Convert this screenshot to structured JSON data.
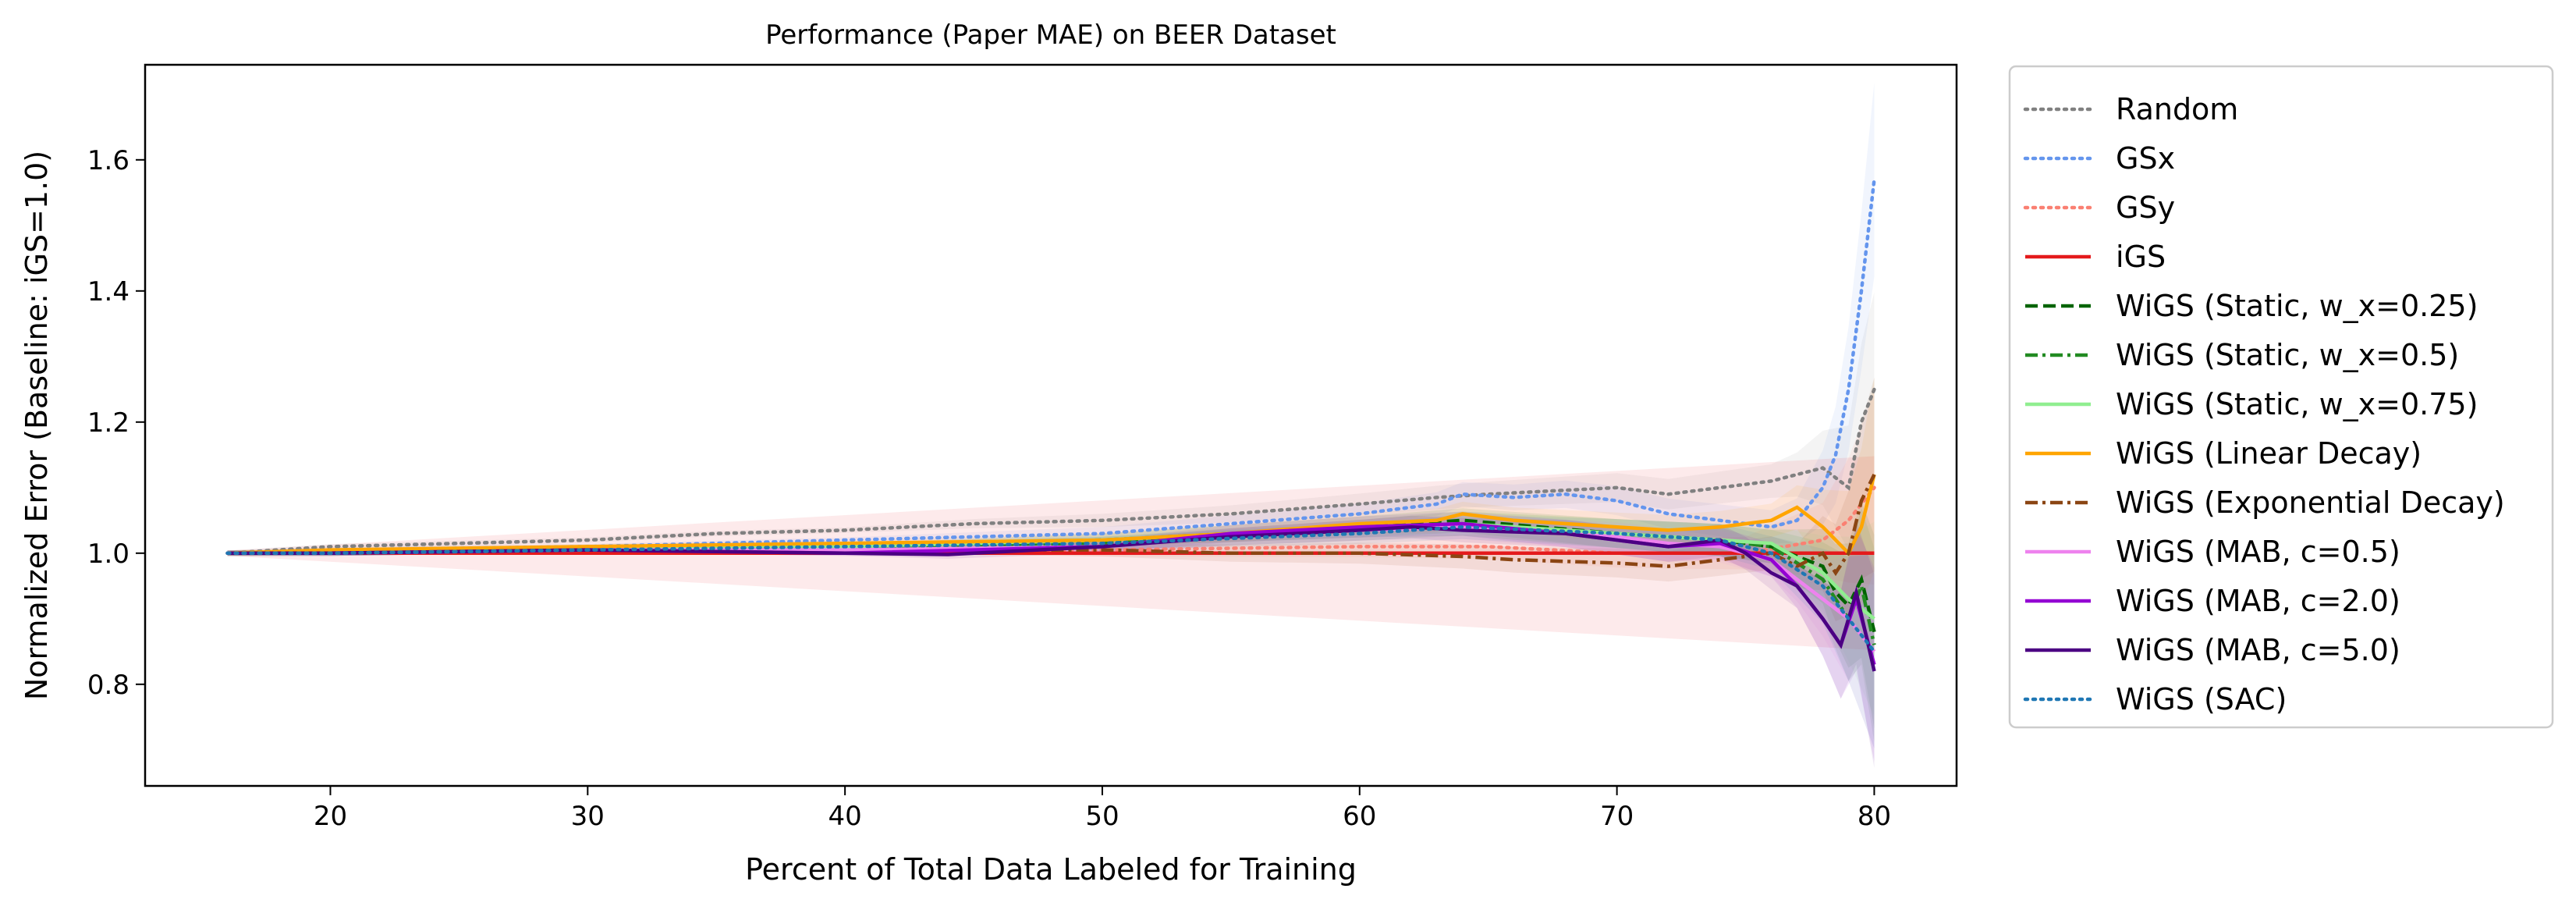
{
  "chart_data": {
    "type": "line",
    "title": "Performance (Paper MAE) on BEER Dataset",
    "xlabel": "Percent of Total Data Labeled for Training",
    "ylabel": "Normalized Error (Baseline: iGS=1.0)",
    "xlim": [
      12.8,
      83.2
    ],
    "ylim": [
      0.645,
      1.745
    ],
    "xticks": [
      20,
      30,
      40,
      50,
      60,
      70,
      80
    ],
    "yticks": [
      0.8,
      1.0,
      1.2,
      1.4,
      1.6
    ],
    "xtick_labels": [
      "20",
      "30",
      "40",
      "50",
      "60",
      "70",
      "80"
    ],
    "ytick_labels": [
      "0.8",
      "1.0",
      "1.2",
      "1.4",
      "1.6"
    ],
    "grid": false,
    "legend_position": "outside right",
    "series": [
      {
        "name": "Random",
        "color": "#808080",
        "dash": "dotted",
        "x": [
          16,
          20,
          25,
          30,
          35,
          40,
          45,
          50,
          55,
          60,
          63,
          65,
          70,
          72,
          74,
          76,
          77,
          78,
          79,
          79.5,
          80
        ],
        "y": [
          1.0,
          1.01,
          1.015,
          1.02,
          1.03,
          1.035,
          1.045,
          1.05,
          1.06,
          1.075,
          1.085,
          1.09,
          1.1,
          1.09,
          1.1,
          1.11,
          1.12,
          1.13,
          1.1,
          1.2,
          1.25
        ]
      },
      {
        "name": "GSx",
        "color": "#6495ED",
        "dash": "dotted",
        "x": [
          16,
          20,
          30,
          40,
          50,
          55,
          60,
          63,
          64,
          66,
          68,
          70,
          72,
          74,
          76,
          77,
          78,
          78.5,
          79,
          79.5,
          80
        ],
        "y": [
          1.0,
          1.005,
          1.01,
          1.02,
          1.03,
          1.045,
          1.06,
          1.075,
          1.09,
          1.085,
          1.09,
          1.08,
          1.06,
          1.05,
          1.04,
          1.05,
          1.1,
          1.15,
          1.25,
          1.4,
          1.57
        ]
      },
      {
        "name": "GSy",
        "color": "#FA8072",
        "dash": "dotted",
        "x": [
          16,
          30,
          40,
          50,
          60,
          65,
          70,
          75,
          78,
          79,
          80
        ],
        "y": [
          1.0,
          1.005,
          1.005,
          1.005,
          1.01,
          1.01,
          1.0,
          1.0,
          1.02,
          1.05,
          1.1
        ]
      },
      {
        "name": "iGS",
        "color": "#E41A1C",
        "dash": "solid",
        "x": [
          16,
          80
        ],
        "y": [
          1.0,
          1.0
        ]
      },
      {
        "name": "WiGS (Static, w_x=0.25)",
        "color": "#006400",
        "dash": "dashed",
        "x": [
          16,
          20,
          30,
          40,
          50,
          55,
          60,
          64,
          70,
          74,
          76,
          78,
          78.5,
          79,
          79.5,
          80
        ],
        "y": [
          1.0,
          1.0,
          1.005,
          1.01,
          1.02,
          1.03,
          1.04,
          1.05,
          1.03,
          1.02,
          1.01,
          0.98,
          0.94,
          0.92,
          0.96,
          0.88
        ]
      },
      {
        "name": "WiGS (Static, w_x=0.5)",
        "color": "#228B22",
        "dash": "dashdot",
        "x": [
          16,
          20,
          30,
          40,
          50,
          55,
          60,
          64,
          70,
          74,
          76,
          78,
          79,
          79.5,
          80
        ],
        "y": [
          1.0,
          1.0,
          1.005,
          1.01,
          1.015,
          1.025,
          1.035,
          1.045,
          1.03,
          1.02,
          1.01,
          0.96,
          0.9,
          0.95,
          0.86
        ]
      },
      {
        "name": "WiGS (Static, w_x=0.75)",
        "color": "#90EE90",
        "dash": "solid",
        "x": [
          16,
          20,
          30,
          40,
          50,
          55,
          60,
          64,
          70,
          74,
          76,
          78,
          79,
          80
        ],
        "y": [
          1.0,
          1.0,
          1.005,
          1.01,
          1.02,
          1.03,
          1.04,
          1.045,
          1.03,
          1.02,
          1.015,
          0.97,
          0.93,
          0.9
        ]
      },
      {
        "name": "WiGS (Linear Decay)",
        "color": "#FFA500",
        "dash": "solid",
        "x": [
          16,
          20,
          30,
          40,
          50,
          55,
          60,
          63,
          64,
          66,
          70,
          72,
          74,
          76,
          77,
          78,
          79,
          79.5,
          80
        ],
        "y": [
          1.0,
          1.005,
          1.01,
          1.015,
          1.02,
          1.03,
          1.045,
          1.05,
          1.06,
          1.05,
          1.04,
          1.035,
          1.04,
          1.05,
          1.07,
          1.04,
          1.0,
          1.04,
          1.12
        ]
      },
      {
        "name": "WiGS (Exponential Decay)",
        "color": "#8B4513",
        "dash": "dashdot",
        "x": [
          16,
          20,
          30,
          40,
          50,
          55,
          60,
          64,
          66,
          70,
          72,
          74,
          76,
          77,
          78,
          78.5,
          79,
          79.5,
          80
        ],
        "y": [
          1.0,
          1.0,
          1.005,
          1.005,
          1.005,
          1.0,
          1.0,
          0.995,
          0.99,
          0.985,
          0.98,
          0.99,
          1.0,
          0.98,
          1.0,
          0.97,
          1.0,
          1.08,
          1.12
        ]
      },
      {
        "name": "WiGS (MAB, c=0.5)",
        "color": "#EE82EE",
        "dash": "solid",
        "x": [
          16,
          20,
          30,
          40,
          50,
          55,
          60,
          64,
          68,
          70,
          72,
          74,
          76,
          77,
          78,
          79,
          80
        ],
        "y": [
          1.0,
          1.0,
          1.005,
          1.005,
          1.01,
          1.025,
          1.035,
          1.04,
          1.03,
          1.025,
          1.015,
          1.01,
          0.99,
          0.96,
          0.93,
          0.9,
          0.85
        ]
      },
      {
        "name": "WiGS (MAB, c=2.0)",
        "color": "#9400D3",
        "dash": "solid",
        "x": [
          16,
          20,
          30,
          40,
          50,
          55,
          60,
          64,
          68,
          70,
          72,
          74,
          76,
          77,
          78,
          78.7,
          79.3,
          80
        ],
        "y": [
          1.0,
          1.0,
          1.005,
          1.0,
          1.01,
          1.03,
          1.04,
          1.045,
          1.03,
          1.02,
          1.01,
          1.015,
          0.99,
          0.95,
          0.9,
          0.86,
          0.93,
          0.83
        ]
      },
      {
        "name": "WiGS (MAB, c=5.0)",
        "color": "#4B0082",
        "dash": "solid",
        "x": [
          16,
          20,
          30,
          40,
          44,
          50,
          55,
          60,
          62,
          64,
          68,
          70,
          72,
          74,
          75,
          76,
          77,
          78,
          78.7,
          79.3,
          80
        ],
        "y": [
          1.0,
          1.0,
          1.005,
          1.0,
          0.998,
          1.01,
          1.025,
          1.035,
          1.04,
          1.035,
          1.03,
          1.02,
          1.01,
          1.02,
          1.0,
          0.97,
          0.95,
          0.9,
          0.86,
          0.94,
          0.82
        ]
      },
      {
        "name": "WiGS (SAC)",
        "color": "#1F77B4",
        "dash": "dotted",
        "x": [
          16,
          20,
          30,
          40,
          50,
          60,
          64,
          70,
          74,
          76,
          78,
          79,
          80
        ],
        "y": [
          1.0,
          1.0,
          1.005,
          1.01,
          1.015,
          1.03,
          1.04,
          1.03,
          1.02,
          1.0,
          0.95,
          0.9,
          0.85
        ]
      }
    ]
  }
}
